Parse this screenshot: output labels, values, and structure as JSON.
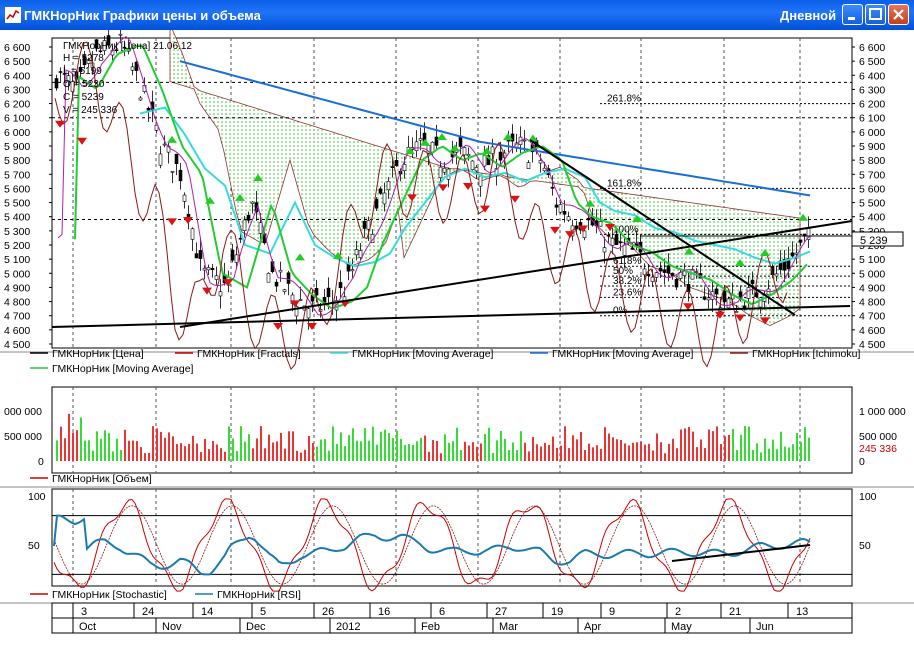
{
  "window": {
    "title": "ГМКНорНик Графики цены и объема",
    "mode": "Дневной"
  },
  "price_panel": {
    "info": {
      "header": "ГМКНорНик [Цена] 21.06.12",
      "lines": [
        "H = 5278",
        "L = 5199",
        "O = 5230",
        "C = 5239",
        "V = 245 336"
      ]
    },
    "y_ticks": [
      "6 600",
      "6 500",
      "6 400",
      "6 300",
      "6 200",
      "6 100",
      "6 000",
      "5 900",
      "5 800",
      "5 700",
      "5 600",
      "5 500",
      "5 400",
      "5 300",
      "5 200",
      "5 100",
      "5 000",
      "4 900",
      "4 800",
      "4 700",
      "4 600",
      "4 500"
    ],
    "last_price": "5 239",
    "fib_labels": [
      "261.8%",
      "161.8%",
      "100%",
      "61.8%",
      "50%",
      "38.2%",
      "23.6%",
      "0%"
    ],
    "legend": [
      {
        "label": "ГМКНорНик [Цена]",
        "color": "#000000"
      },
      {
        "label": "ГМКНорНик [Fractals]",
        "color": "#cc0000"
      },
      {
        "label": "ГМКНорНик [Moving Average]",
        "color": "#33dddd"
      },
      {
        "label": "ГМКНорНик [Moving Average]",
        "color": "#1a6ed8"
      },
      {
        "label": "ГМКНорНик [Ichimoku]",
        "color": "#8b1a1a"
      },
      {
        "label": "ГМКНорНик [Moving Average]",
        "color": "#22cc33"
      }
    ]
  },
  "volume_panel": {
    "y_ticks": [
      "1 000 000",
      "500 000",
      "0"
    ],
    "left_ticks": [
      "000 000",
      "500 000",
      "0"
    ],
    "last_volume": "245 336",
    "legend": {
      "label": "ГМКНорНик [Объем]",
      "color": "#cc0000"
    }
  },
  "osc_panel": {
    "y_ticks": [
      "100",
      "50"
    ],
    "legend": [
      {
        "label": "ГМКНорНик [Stochastic]",
        "color": "#cc0000"
      },
      {
        "label": "ГМКНорНик [RSI]",
        "color": "#1a7ab0"
      }
    ]
  },
  "x_axis": {
    "days": [
      "3",
      "24",
      "14",
      "5",
      "26",
      "16",
      "6",
      "27",
      "19",
      "9",
      "2",
      "21",
      "13"
    ],
    "months": [
      "Oct",
      "Nov",
      "Dec",
      "2012",
      "Feb",
      "Mar",
      "Apr",
      "May",
      "Jun"
    ]
  }
}
